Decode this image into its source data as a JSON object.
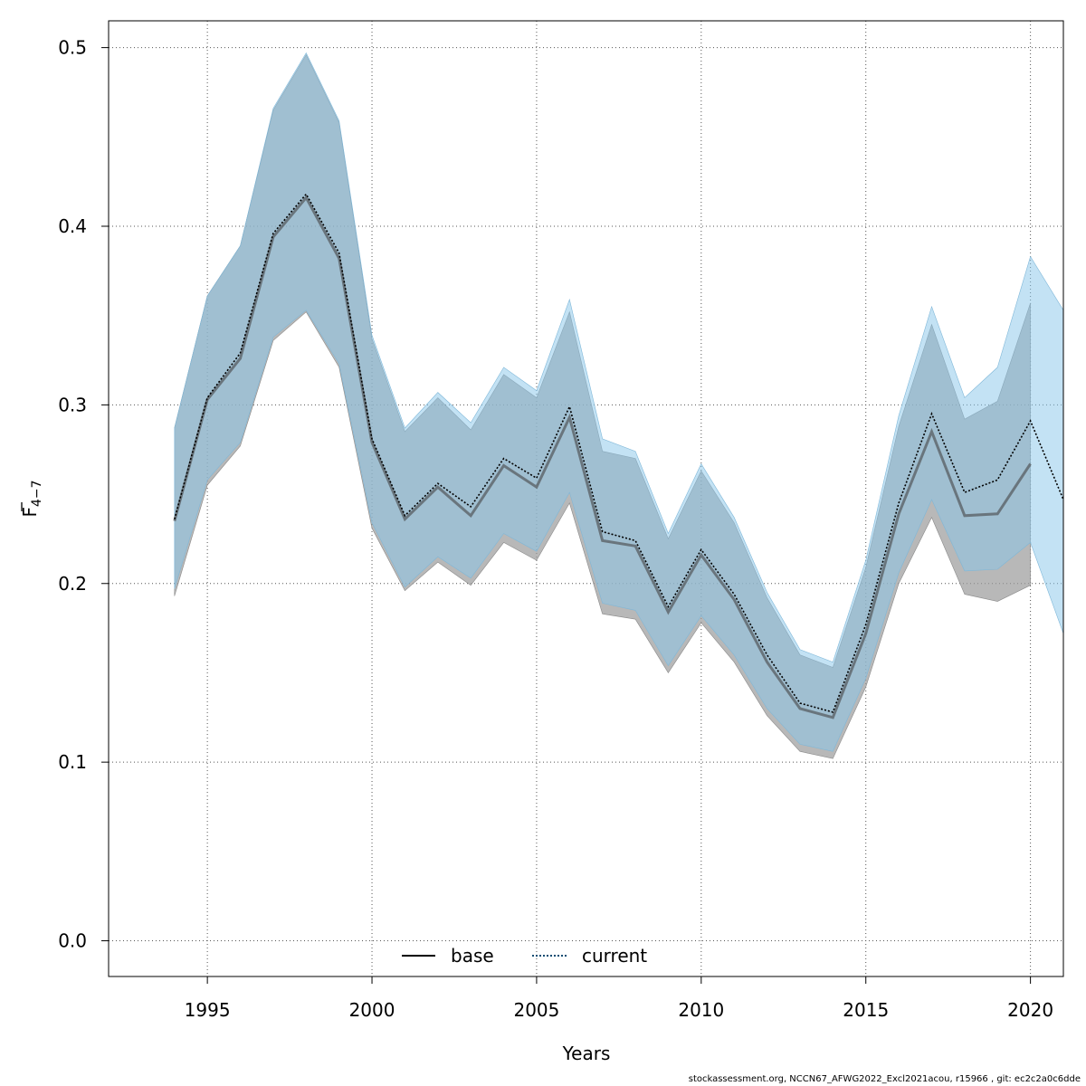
{
  "chart_data": {
    "type": "area",
    "xlabel": "Years",
    "ylabel": "F̅4−7",
    "ylabel_main": "F",
    "ylabel_sub": "4−7",
    "xlim": [
      1992.0,
      2021.0
    ],
    "ylim": [
      -0.02,
      0.515
    ],
    "x_ticks": [
      "1995",
      "2000",
      "2005",
      "2010",
      "2015",
      "2020"
    ],
    "y_ticks": [
      "0.0",
      "0.1",
      "0.2",
      "0.3",
      "0.4",
      "0.5"
    ],
    "grid": true,
    "legend_position": "bottom-center",
    "colors": {
      "base_band": "#9a9a9a",
      "current_band": "#87c5ea",
      "base_line": "#444444",
      "current_line": "#0a4d73"
    },
    "series": [
      {
        "name": "base",
        "x": [
          1994,
          1995,
          1996,
          1997,
          1998,
          1999,
          2000,
          2001,
          2002,
          2003,
          2004,
          2005,
          2006,
          2007,
          2008,
          2009,
          2010,
          2011,
          2012,
          2013,
          2014,
          2015,
          2016,
          2017,
          2018,
          2019,
          2020
        ],
        "values": [
          0.235,
          0.303,
          0.326,
          0.394,
          0.416,
          0.382,
          0.279,
          0.236,
          0.254,
          0.238,
          0.266,
          0.254,
          0.293,
          0.224,
          0.221,
          0.184,
          0.216,
          0.191,
          0.156,
          0.13,
          0.125,
          0.172,
          0.239,
          0.285,
          0.238,
          0.239,
          0.267
        ],
        "lower": [
          0.193,
          0.255,
          0.277,
          0.336,
          0.352,
          0.321,
          0.231,
          0.196,
          0.212,
          0.199,
          0.223,
          0.213,
          0.245,
          0.183,
          0.18,
          0.15,
          0.178,
          0.156,
          0.126,
          0.106,
          0.102,
          0.142,
          0.2,
          0.237,
          0.194,
          0.19,
          0.199
        ],
        "upper": [
          0.287,
          0.361,
          0.389,
          0.465,
          0.496,
          0.458,
          0.337,
          0.285,
          0.304,
          0.286,
          0.317,
          0.304,
          0.352,
          0.274,
          0.27,
          0.225,
          0.263,
          0.234,
          0.192,
          0.16,
          0.153,
          0.209,
          0.288,
          0.345,
          0.292,
          0.302,
          0.357
        ]
      },
      {
        "name": "current",
        "x": [
          1994,
          1995,
          1996,
          1997,
          1998,
          1999,
          2000,
          2001,
          2002,
          2003,
          2004,
          2005,
          2006,
          2007,
          2008,
          2009,
          2010,
          2011,
          2012,
          2013,
          2014,
          2015,
          2016,
          2017,
          2018,
          2019,
          2020,
          2021
        ],
        "values": [
          0.236,
          0.304,
          0.329,
          0.396,
          0.418,
          0.385,
          0.281,
          0.238,
          0.256,
          0.243,
          0.27,
          0.259,
          0.299,
          0.229,
          0.224,
          0.187,
          0.219,
          0.194,
          0.16,
          0.133,
          0.128,
          0.177,
          0.245,
          0.295,
          0.251,
          0.258,
          0.291,
          0.247
        ],
        "lower": [
          0.197,
          0.258,
          0.279,
          0.338,
          0.353,
          0.323,
          0.234,
          0.198,
          0.215,
          0.203,
          0.228,
          0.218,
          0.251,
          0.189,
          0.185,
          0.154,
          0.182,
          0.16,
          0.13,
          0.11,
          0.106,
          0.147,
          0.206,
          0.247,
          0.207,
          0.208,
          0.223,
          0.172
        ],
        "upper": [
          0.287,
          0.361,
          0.389,
          0.466,
          0.497,
          0.459,
          0.339,
          0.287,
          0.307,
          0.29,
          0.321,
          0.308,
          0.359,
          0.281,
          0.274,
          0.228,
          0.267,
          0.237,
          0.195,
          0.163,
          0.156,
          0.213,
          0.294,
          0.355,
          0.304,
          0.321,
          0.383,
          0.353
        ]
      }
    ]
  },
  "footer": "stockassessment.org, NCCN67_AFWG2022_Excl2021acou, r15966 , git: ec2c2a0c6dde"
}
